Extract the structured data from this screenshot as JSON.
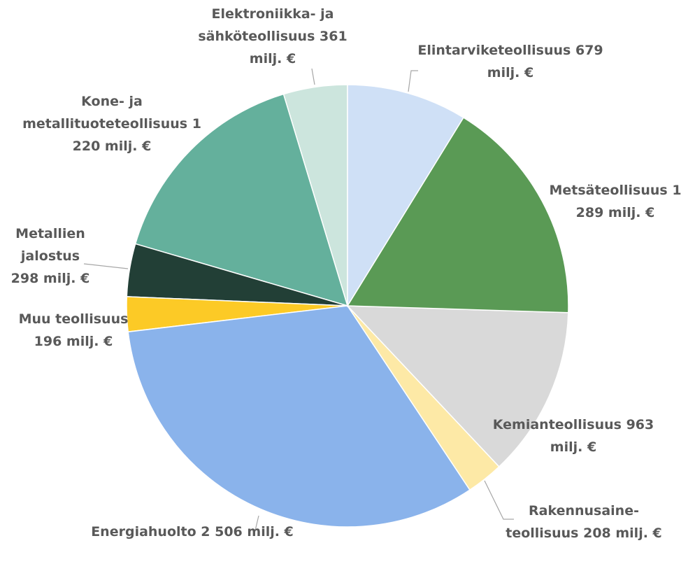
{
  "chart_data": {
    "type": "pie",
    "categories": [
      "Elintarviketeollisuus",
      "Metsäteollisuus",
      "Kemianteollisuus",
      "Rakennusaine-teollisuus",
      "Energiahuolto",
      "Muu teollisuus",
      "Metallien jalostus",
      "Kone- ja metallituoteteollisuus",
      "Elektroniikka- ja sähköteollisuus"
    ],
    "values": [
      679,
      1289,
      963,
      208,
      2506,
      196,
      298,
      1220,
      361
    ],
    "value_labels": [
      "679 milj. €",
      "1 289 milj. €",
      "963 milj. €",
      "208 milj. €",
      "2 506 milj. €",
      "196 milj. €",
      "298 milj. €",
      "1 220 milj. €",
      "361 milj. €"
    ],
    "colors": [
      "#cfe0f6",
      "#5a9a55",
      "#d9d9d9",
      "#fde9a6",
      "#8ab3eb",
      "#fcca26",
      "#223f36",
      "#64b09c",
      "#cce5dd"
    ]
  }
}
